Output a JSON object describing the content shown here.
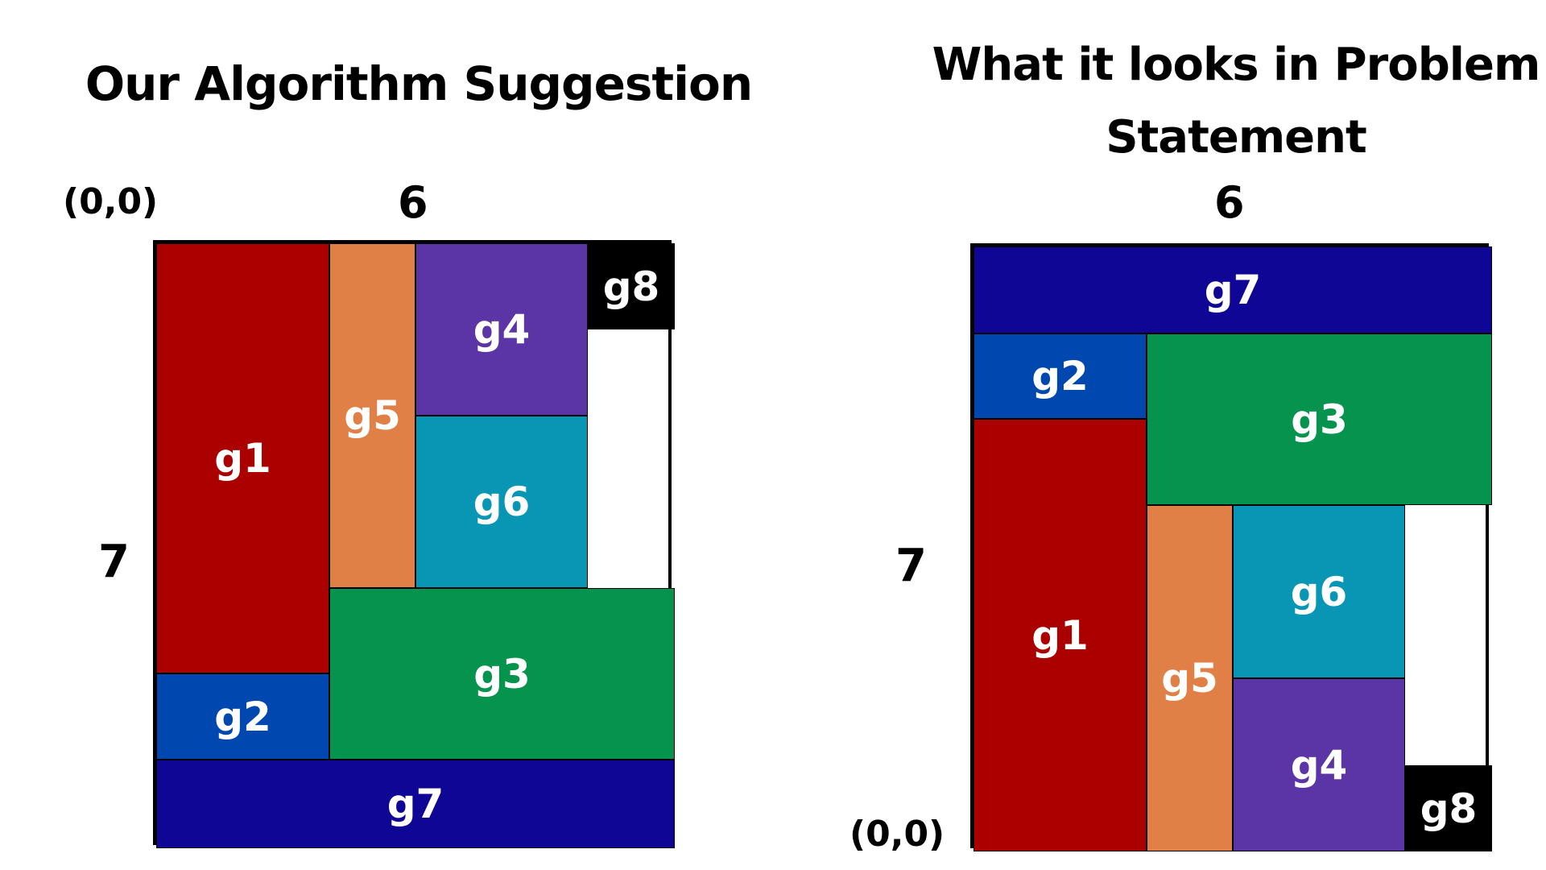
{
  "left_diagram": {
    "title": "Our Algorithm Suggestion",
    "width_label": "6",
    "height_label": "7",
    "origin_label": "(0,0)",
    "origin": "top-left",
    "blocks": [
      {
        "name": "g1",
        "color": "#aa0000"
      },
      {
        "name": "g2",
        "color": "#0048b0"
      },
      {
        "name": "g3",
        "color": "#05934e"
      },
      {
        "name": "g4",
        "color": "#5b35a6"
      },
      {
        "name": "g5",
        "color": "#e08046"
      },
      {
        "name": "g6",
        "color": "#0896b4"
      },
      {
        "name": "g7",
        "color": "#100696"
      },
      {
        "name": "g8",
        "color": "#000000"
      }
    ]
  },
  "right_diagram": {
    "title": "What it looks in Problem Statement",
    "width_label": "6",
    "height_label": "7",
    "origin_label": "(0,0)",
    "origin": "bottom-left",
    "blocks": [
      {
        "name": "g1",
        "color": "#aa0000"
      },
      {
        "name": "g2",
        "color": "#0048b0"
      },
      {
        "name": "g3",
        "color": "#05934e"
      },
      {
        "name": "g4",
        "color": "#5b35a6"
      },
      {
        "name": "g5",
        "color": "#e08046"
      },
      {
        "name": "g6",
        "color": "#0896b4"
      },
      {
        "name": "g7",
        "color": "#100696"
      },
      {
        "name": "g8",
        "color": "#000000"
      }
    ]
  }
}
